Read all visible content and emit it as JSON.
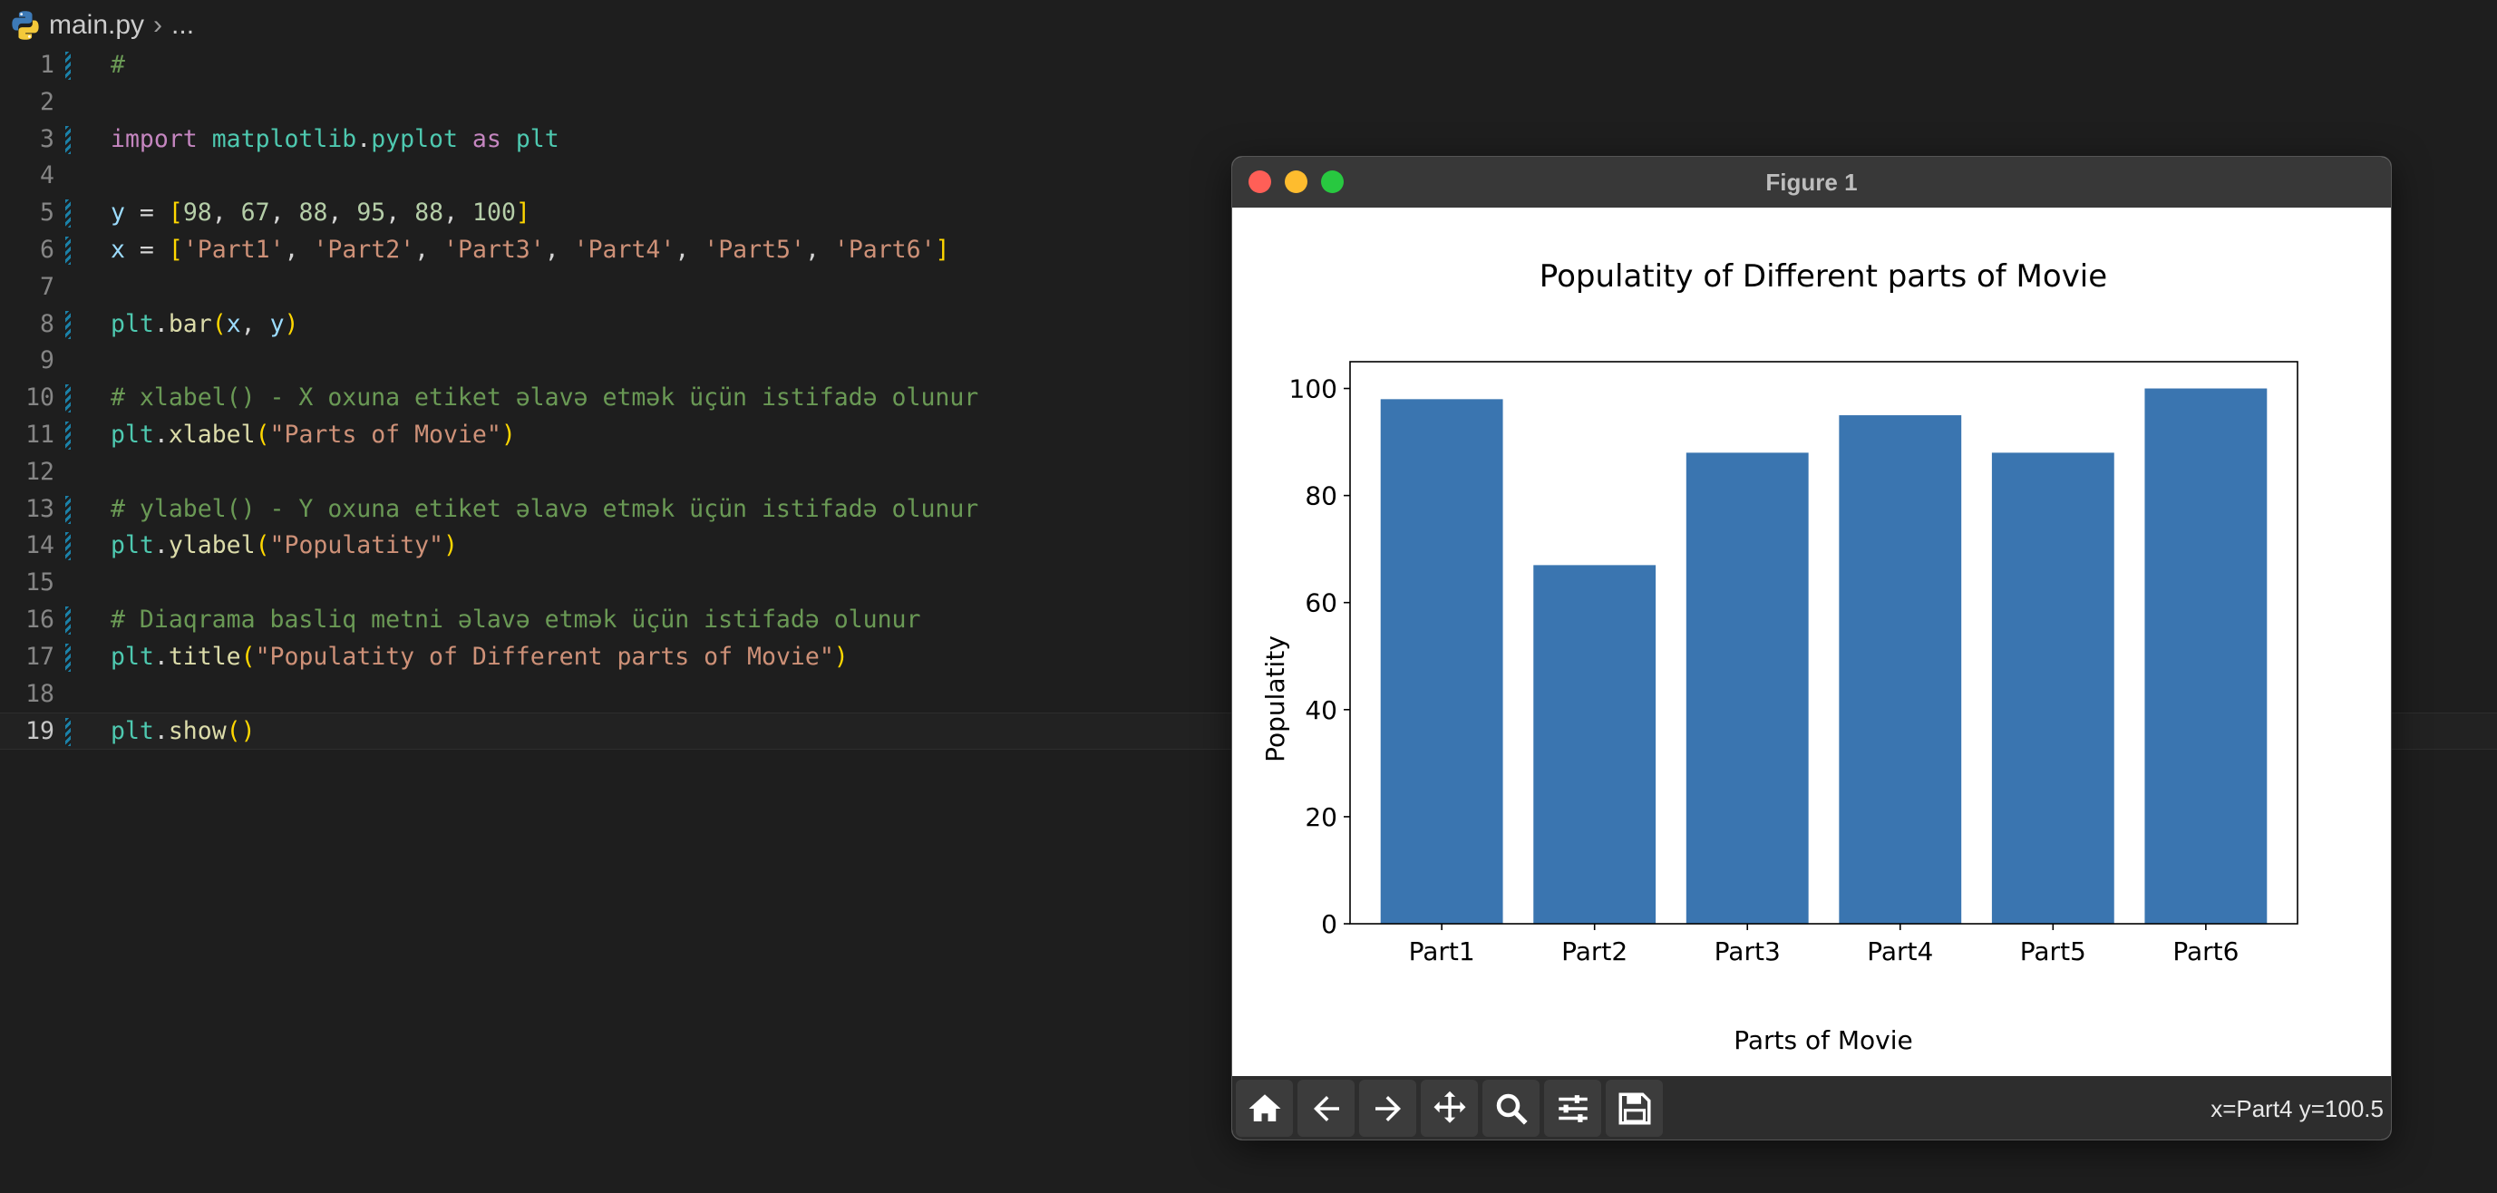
{
  "breadcrumb": {
    "file": "main.py",
    "rest": "..."
  },
  "editor": {
    "lines": [
      {
        "num": "1",
        "tokens": [
          [
            "c",
            "#"
          ]
        ]
      },
      {
        "num": "2",
        "tokens": []
      },
      {
        "num": "3",
        "tokens": [
          [
            "k",
            "import"
          ],
          [
            "p",
            " "
          ],
          [
            "m",
            "matplotlib"
          ],
          [
            "p",
            "."
          ],
          [
            "m",
            "pyplot"
          ],
          [
            "p",
            " "
          ],
          [
            "k",
            "as"
          ],
          [
            "p",
            " "
          ],
          [
            "m",
            "plt"
          ]
        ]
      },
      {
        "num": "4",
        "tokens": []
      },
      {
        "num": "5",
        "tokens": [
          [
            "v",
            "y"
          ],
          [
            "p",
            " = "
          ],
          [
            "b",
            "["
          ],
          [
            "n",
            "98"
          ],
          [
            "p",
            ", "
          ],
          [
            "n",
            "67"
          ],
          [
            "p",
            ", "
          ],
          [
            "n",
            "88"
          ],
          [
            "p",
            ", "
          ],
          [
            "n",
            "95"
          ],
          [
            "p",
            ", "
          ],
          [
            "n",
            "88"
          ],
          [
            "p",
            ", "
          ],
          [
            "n",
            "100"
          ],
          [
            "b",
            "]"
          ]
        ]
      },
      {
        "num": "6",
        "tokens": [
          [
            "v",
            "x"
          ],
          [
            "p",
            " = "
          ],
          [
            "b",
            "["
          ],
          [
            "s",
            "'Part1'"
          ],
          [
            "p",
            ", "
          ],
          [
            "s",
            "'Part2'"
          ],
          [
            "p",
            ", "
          ],
          [
            "s",
            "'Part3'"
          ],
          [
            "p",
            ", "
          ],
          [
            "s",
            "'Part4'"
          ],
          [
            "p",
            ", "
          ],
          [
            "s",
            "'Part5'"
          ],
          [
            "p",
            ", "
          ],
          [
            "s",
            "'Part6'"
          ],
          [
            "b",
            "]"
          ]
        ]
      },
      {
        "num": "7",
        "tokens": []
      },
      {
        "num": "8",
        "tokens": [
          [
            "m",
            "plt"
          ],
          [
            "p",
            "."
          ],
          [
            "f",
            "bar"
          ],
          [
            "b",
            "("
          ],
          [
            "v",
            "x"
          ],
          [
            "p",
            ", "
          ],
          [
            "v",
            "y"
          ],
          [
            "b",
            ")"
          ]
        ]
      },
      {
        "num": "9",
        "tokens": []
      },
      {
        "num": "10",
        "tokens": [
          [
            "c",
            "# xlabel() - X oxuna etiket əlavə etmək üçün istifadə olunur"
          ]
        ]
      },
      {
        "num": "11",
        "tokens": [
          [
            "m",
            "plt"
          ],
          [
            "p",
            "."
          ],
          [
            "f",
            "xlabel"
          ],
          [
            "b",
            "("
          ],
          [
            "s",
            "\"Parts of Movie\""
          ],
          [
            "b",
            ")"
          ]
        ]
      },
      {
        "num": "12",
        "tokens": []
      },
      {
        "num": "13",
        "tokens": [
          [
            "c",
            "# ylabel() - Y oxuna etiket əlavə etmək üçün istifadə olunur"
          ]
        ]
      },
      {
        "num": "14",
        "tokens": [
          [
            "m",
            "plt"
          ],
          [
            "p",
            "."
          ],
          [
            "f",
            "ylabel"
          ],
          [
            "b",
            "("
          ],
          [
            "s",
            "\"Populatity\""
          ],
          [
            "b",
            ")"
          ]
        ]
      },
      {
        "num": "15",
        "tokens": []
      },
      {
        "num": "16",
        "tokens": [
          [
            "c",
            "# Diaqrama basliq metni əlavə etmək üçün istifadə olunur"
          ]
        ]
      },
      {
        "num": "17",
        "tokens": [
          [
            "m",
            "plt"
          ],
          [
            "p",
            "."
          ],
          [
            "f",
            "title"
          ],
          [
            "b",
            "("
          ],
          [
            "s",
            "\"Populatity of Different parts of Movie\""
          ],
          [
            "b",
            ")"
          ]
        ]
      },
      {
        "num": "18",
        "tokens": []
      },
      {
        "num": "19",
        "tokens": [
          [
            "m",
            "plt"
          ],
          [
            "p",
            "."
          ],
          [
            "f",
            "show"
          ],
          [
            "b",
            "()"
          ]
        ]
      }
    ],
    "modified_lines": [
      "1",
      "3",
      "5",
      "6",
      "8",
      "10",
      "11",
      "13",
      "14",
      "16",
      "17",
      "19"
    ],
    "current_line": "19"
  },
  "figure": {
    "window_title": "Figure 1",
    "coord_readout": "x=Part4 y=100.5",
    "toolbar": [
      "home-icon",
      "back-arrow-icon",
      "forward-arrow-icon",
      "pan-icon",
      "zoom-icon",
      "configure-subplots-icon",
      "save-icon"
    ]
  },
  "chart_data": {
    "type": "bar",
    "title": "Populatity of Different parts of Movie",
    "xlabel": "Parts of Movie",
    "ylabel": "Populatity",
    "categories": [
      "Part1",
      "Part2",
      "Part3",
      "Part4",
      "Part5",
      "Part6"
    ],
    "values": [
      98,
      67,
      88,
      95,
      88,
      100
    ],
    "ylim": [
      0,
      105
    ],
    "yticks": [
      "0",
      "20",
      "40",
      "60",
      "80",
      "100"
    ],
    "bar_color": "#3a75b0",
    "grid": false
  }
}
